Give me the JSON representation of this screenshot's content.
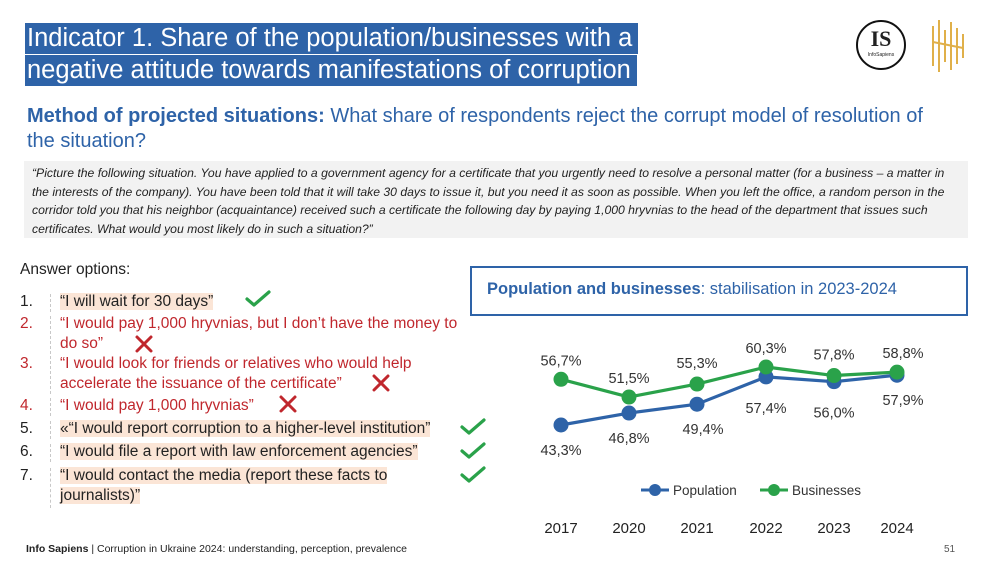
{
  "header": {
    "title": "Indicator 1. Share of the population/businesses with a negative attitude towards manifestations of corruption",
    "logo_text": "IS",
    "logo_subtext": "InfoSapiens"
  },
  "subtitle": {
    "bold": "Method of projected situations:",
    "rest": " What share of respondents reject the corrupt model of resolution of the situation?"
  },
  "quote": "“Picture the following situation. You have applied to a government agency for a certificate that you urgently need to resolve a personal matter (for a business – a matter in the interests of the company). You have been told that it will take 30 days to issue it, but you need it as soon as possible. When you left the office, a random person in the corridor told you that his neighbor (acquaintance) received such a certificate the following day by paying 1,000 hryvnias to the head of the department that issues such certificates. What would you most likely do in such a situation?”",
  "answers": {
    "title": "Answer options:",
    "items": [
      {
        "num": "1.",
        "text": "“I will wait for 30 days”",
        "mark": "check"
      },
      {
        "num": "2.",
        "text": "“I would pay 1,000 hryvnias, but I don’t have the money to do so”",
        "mark": "cross"
      },
      {
        "num": "3.",
        "text": "“I would look for friends or relatives who would help accelerate the issuance of the certificate”",
        "mark": "cross"
      },
      {
        "num": "4.",
        "text": "“I would pay 1,000 hryvnias”",
        "mark": "cross"
      },
      {
        "num": "5.",
        "text": "«“I would report corruption to a higher-level institution”",
        "mark": "check"
      },
      {
        "num": "6.",
        "text": "“I would file a report with law enforcement agencies”",
        "mark": "check"
      },
      {
        "num": "7.",
        "text": "“I would contact the media (report these facts to journalists)”",
        "mark": "check"
      }
    ]
  },
  "chart_title": {
    "bold": "Population and businesses",
    "rest": ": stabilisation in 2023-2024"
  },
  "chart_data": {
    "type": "line",
    "x": [
      "2017",
      "2020",
      "2021",
      "2022",
      "2023",
      "2024"
    ],
    "series": [
      {
        "name": "Population",
        "values": [
          43.3,
          46.8,
          49.4,
          57.4,
          56.0,
          57.9
        ],
        "labels": [
          "43,3%",
          "46,8%",
          "49,4%",
          "57,4%",
          "56,0%",
          "57,9%"
        ],
        "color": "#2e63a8"
      },
      {
        "name": "Businesses",
        "values": [
          56.7,
          51.5,
          55.3,
          60.3,
          57.8,
          58.8
        ],
        "labels": [
          "56,7%",
          "51,5%",
          "55,3%",
          "60,3%",
          "57,8%",
          "58,8%"
        ],
        "color": "#2aa24a"
      }
    ],
    "legend": "bottom",
    "grid": false
  },
  "colors": {
    "accent": "#2e63a8",
    "population": "#2e63a8",
    "businesses": "#2aa24a",
    "reject_mark": "#c0272d",
    "accept_mark": "#2aa24a",
    "highlight": "#fbe5d6"
  },
  "footer": {
    "brand": "Info Sapiens",
    "text": " | Corruption in Ukraine 2024: understanding, perception, prevalence",
    "page": "51"
  }
}
